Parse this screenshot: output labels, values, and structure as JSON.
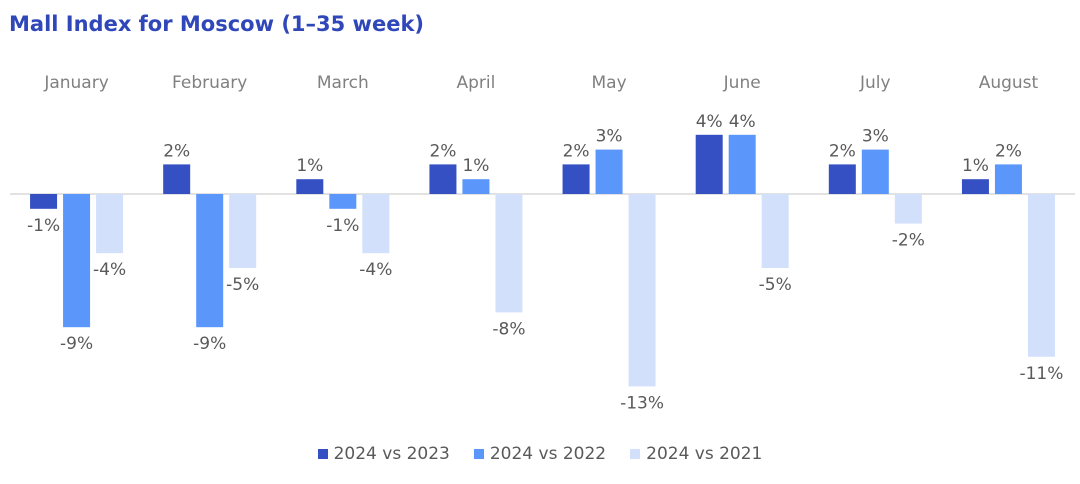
{
  "chart_data": {
    "type": "bar",
    "title": "Mall Index for Moscow (1–35 week)",
    "categories": [
      "January",
      "February",
      "March",
      "April",
      "May",
      "June",
      "July",
      "August"
    ],
    "series": [
      {
        "name": "2024 vs 2023",
        "color": "#3550c3",
        "values": [
          -1,
          2,
          1,
          2,
          2,
          4,
          2,
          1
        ],
        "labels": [
          "-1%",
          "2%",
          "1%",
          "2%",
          "2%",
          "4%",
          "2%",
          "1%"
        ]
      },
      {
        "name": "2024 vs 2022",
        "color": "#5b96fb",
        "values": [
          -9,
          -9,
          -1,
          1,
          3,
          4,
          3,
          2
        ],
        "labels": [
          "-9%",
          "-9%",
          "-1%",
          "1%",
          "3%",
          "4%",
          "3%",
          "2%"
        ]
      },
      {
        "name": "2024 vs 2021",
        "color": "#d3e0fc",
        "values": [
          -4,
          -5,
          -4,
          -8,
          -13,
          -5,
          -2,
          -11
        ],
        "labels": [
          "-4%",
          "-5%",
          "-4%",
          "-8%",
          "-13%",
          "-5%",
          "-2%",
          "-11%"
        ]
      }
    ],
    "legend_position": "bottom",
    "grid": false
  }
}
